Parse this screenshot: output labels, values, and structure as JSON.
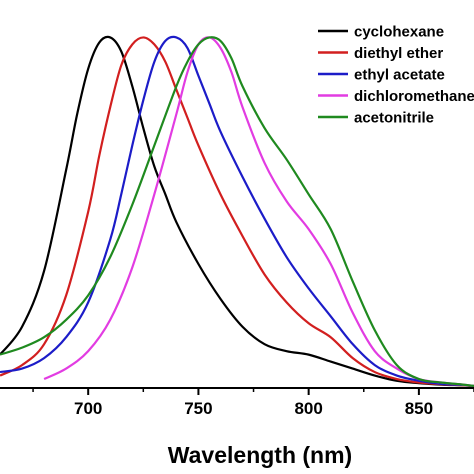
{
  "chart_data": {
    "type": "line",
    "title": "",
    "xlabel": "Wavelength (nm)",
    "ylabel": "",
    "xlim": [
      660,
      875
    ],
    "ylim": [
      0,
      1.05
    ],
    "grid": false,
    "legend_placement": "top-right",
    "xticks": [
      {
        "value": 700,
        "label": "700"
      },
      {
        "value": 750,
        "label": "750"
      },
      {
        "value": 800,
        "label": "800"
      },
      {
        "value": 850,
        "label": "850"
      }
    ],
    "series": [
      {
        "name": "cyclohexane",
        "color": "#000000",
        "x": [
          660,
          670,
          680,
          690,
          695,
          700,
          705,
          710,
          715,
          720,
          725,
          730,
          735,
          740,
          750,
          760,
          770,
          780,
          790,
          800,
          810,
          820,
          830,
          840,
          850,
          860,
          870,
          875
        ],
        "y": [
          0.09,
          0.17,
          0.33,
          0.62,
          0.78,
          0.91,
          0.985,
          1.0,
          0.96,
          0.86,
          0.74,
          0.63,
          0.55,
          0.47,
          0.35,
          0.25,
          0.17,
          0.12,
          0.1,
          0.09,
          0.07,
          0.05,
          0.03,
          0.015,
          0.008,
          0.004,
          0.002,
          0.0
        ]
      },
      {
        "name": "diethyl ether",
        "color": "#d21f1f",
        "x": [
          660,
          670,
          680,
          690,
          700,
          705,
          710,
          715,
          720,
          725,
          730,
          735,
          740,
          745,
          750,
          760,
          770,
          780,
          790,
          800,
          810,
          820,
          830,
          840,
          850,
          860,
          870,
          875
        ],
        "y": [
          0.03,
          0.06,
          0.12,
          0.26,
          0.5,
          0.66,
          0.8,
          0.92,
          0.98,
          1.0,
          0.98,
          0.93,
          0.85,
          0.77,
          0.69,
          0.55,
          0.43,
          0.32,
          0.24,
          0.18,
          0.14,
          0.08,
          0.04,
          0.02,
          0.01,
          0.005,
          0.002,
          0.0
        ]
      },
      {
        "name": "ethyl acetate",
        "color": "#1c1cc8",
        "x": [
          660,
          670,
          680,
          690,
          700,
          710,
          715,
          720,
          725,
          730,
          735,
          740,
          745,
          750,
          755,
          760,
          770,
          780,
          790,
          800,
          810,
          820,
          830,
          840,
          850,
          860,
          870,
          875
        ],
        "y": [
          0.04,
          0.05,
          0.08,
          0.14,
          0.24,
          0.42,
          0.55,
          0.69,
          0.82,
          0.93,
          0.99,
          1.0,
          0.97,
          0.89,
          0.81,
          0.73,
          0.6,
          0.48,
          0.37,
          0.28,
          0.2,
          0.12,
          0.06,
          0.03,
          0.015,
          0.006,
          0.003,
          0.0
        ]
      },
      {
        "name": "dichloromethane",
        "color": "#e23ce2",
        "x": [
          680,
          690,
          700,
          710,
          720,
          730,
          740,
          745,
          750,
          755,
          760,
          765,
          770,
          780,
          790,
          800,
          810,
          820,
          830,
          840,
          850,
          860,
          870,
          875
        ],
        "y": [
          0.02,
          0.05,
          0.1,
          0.19,
          0.34,
          0.55,
          0.78,
          0.9,
          0.98,
          1.0,
          0.97,
          0.9,
          0.8,
          0.64,
          0.53,
          0.45,
          0.35,
          0.21,
          0.1,
          0.05,
          0.02,
          0.01,
          0.004,
          0.0
        ]
      },
      {
        "name": "acetonitrile",
        "color": "#1f8a1f",
        "x": [
          660,
          670,
          680,
          690,
          700,
          710,
          720,
          730,
          740,
          745,
          750,
          755,
          760,
          765,
          770,
          780,
          790,
          800,
          810,
          820,
          830,
          840,
          850,
          860,
          870,
          875
        ],
        "y": [
          0.09,
          0.11,
          0.14,
          0.19,
          0.26,
          0.37,
          0.52,
          0.69,
          0.86,
          0.93,
          0.98,
          1.0,
          0.99,
          0.94,
          0.86,
          0.74,
          0.65,
          0.55,
          0.45,
          0.3,
          0.16,
          0.06,
          0.02,
          0.01,
          0.004,
          0.0
        ]
      }
    ]
  }
}
